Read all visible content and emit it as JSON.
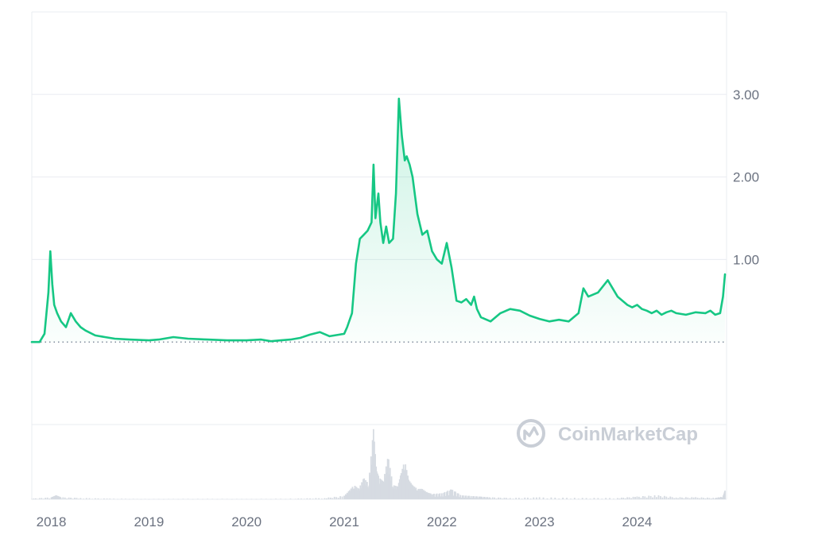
{
  "watermark": {
    "text": "CoinMarketCap",
    "icon": "coinmarketcap-logo-icon"
  },
  "colors": {
    "line": "#16c784",
    "fill_top": "#16c784",
    "volume": "#d6dbe2",
    "grid": "#e9ecf1",
    "baseline": "#58667e",
    "axis_text": "#6b7280",
    "watermark": "#c9ced6"
  },
  "chart_data": {
    "type": "area",
    "title": "",
    "xlabel": "",
    "ylabel": "",
    "ylim": [
      -1,
      4
    ],
    "xlim": [
      2017.8,
      2024.9
    ],
    "y_ticks": [
      1,
      2,
      3
    ],
    "y_tick_labels": [
      "1.00",
      "2.00",
      "3.00"
    ],
    "x_ticks": [
      2018,
      2019,
      2020,
      2021,
      2022,
      2023,
      2024
    ],
    "x_tick_labels": [
      "2018",
      "2019",
      "2020",
      "2021",
      "2022",
      "2023",
      "2024"
    ],
    "grid": true,
    "baseline_value": 0.0,
    "series": [
      {
        "x": [
          2017.8,
          2017.88,
          2017.93,
          2017.97,
          2017.99,
          2018.01,
          2018.03,
          2018.06,
          2018.1,
          2018.15,
          2018.2,
          2018.25,
          2018.3,
          2018.35,
          2018.45,
          2018.55,
          2018.65,
          2018.8,
          2019.0,
          2019.1,
          2019.25,
          2019.4,
          2019.6,
          2019.8,
          2020.0,
          2020.15,
          2020.25,
          2020.35,
          2020.45,
          2020.55,
          2020.65,
          2020.75,
          2020.85,
          2020.95,
          2021.0,
          2021.03,
          2021.08,
          2021.12,
          2021.16,
          2021.2,
          2021.24,
          2021.28,
          2021.3,
          2021.32,
          2021.35,
          2021.37,
          2021.4,
          2021.43,
          2021.46,
          2021.5,
          2021.53,
          2021.56,
          2021.59,
          2021.62,
          2021.64,
          2021.67,
          2021.7,
          2021.75,
          2021.8,
          2021.85,
          2021.9,
          2021.95,
          2022.0,
          2022.05,
          2022.1,
          2022.15,
          2022.2,
          2022.25,
          2022.3,
          2022.33,
          2022.36,
          2022.4,
          2022.5,
          2022.6,
          2022.7,
          2022.8,
          2022.9,
          2023.0,
          2023.1,
          2023.2,
          2023.3,
          2023.4,
          2023.45,
          2023.5,
          2023.6,
          2023.7,
          2023.8,
          2023.9,
          2023.95,
          2024.0,
          2024.05,
          2024.1,
          2024.15,
          2024.2,
          2024.25,
          2024.3,
          2024.35,
          2024.4,
          2024.5,
          2024.6,
          2024.7,
          2024.75,
          2024.8,
          2024.85,
          2024.88,
          2024.9
        ],
        "y": [
          0.0,
          0.0,
          0.1,
          0.6,
          1.1,
          0.7,
          0.45,
          0.35,
          0.25,
          0.18,
          0.35,
          0.25,
          0.18,
          0.14,
          0.08,
          0.06,
          0.04,
          0.03,
          0.02,
          0.03,
          0.06,
          0.04,
          0.03,
          0.02,
          0.02,
          0.03,
          0.01,
          0.02,
          0.03,
          0.05,
          0.09,
          0.12,
          0.07,
          0.09,
          0.1,
          0.18,
          0.35,
          0.95,
          1.25,
          1.3,
          1.35,
          1.45,
          2.15,
          1.5,
          1.8,
          1.45,
          1.2,
          1.4,
          1.2,
          1.25,
          1.8,
          2.95,
          2.5,
          2.2,
          2.25,
          2.15,
          2.0,
          1.55,
          1.3,
          1.35,
          1.1,
          1.0,
          0.95,
          1.2,
          0.9,
          0.5,
          0.48,
          0.52,
          0.45,
          0.55,
          0.4,
          0.3,
          0.25,
          0.35,
          0.4,
          0.38,
          0.32,
          0.28,
          0.25,
          0.27,
          0.25,
          0.35,
          0.65,
          0.55,
          0.6,
          0.75,
          0.55,
          0.45,
          0.42,
          0.45,
          0.4,
          0.38,
          0.35,
          0.38,
          0.33,
          0.36,
          0.38,
          0.35,
          0.33,
          0.36,
          0.35,
          0.38,
          0.33,
          0.35,
          0.55,
          0.82
        ]
      }
    ],
    "volume": {
      "ylim": [
        0,
        10
      ],
      "x": [
        2017.8,
        2018.0,
        2018.05,
        2018.1,
        2018.3,
        2018.6,
        2019.0,
        2019.5,
        2020.0,
        2020.5,
        2020.8,
        2021.0,
        2021.05,
        2021.1,
        2021.15,
        2021.2,
        2021.25,
        2021.3,
        2021.33,
        2021.36,
        2021.4,
        2021.45,
        2021.5,
        2021.55,
        2021.58,
        2021.62,
        2021.66,
        2021.7,
        2021.75,
        2021.8,
        2021.85,
        2021.9,
        2022.0,
        2022.1,
        2022.2,
        2022.3,
        2022.4,
        2022.5,
        2022.7,
        2023.0,
        2023.4,
        2023.8,
        2024.0,
        2024.2,
        2024.4,
        2024.6,
        2024.8,
        2024.88,
        2024.9
      ],
      "y": [
        0.1,
        0.3,
        0.6,
        0.3,
        0.2,
        0.1,
        0.05,
        0.08,
        0.05,
        0.1,
        0.2,
        0.5,
        1.2,
        2.0,
        1.5,
        3.0,
        2.2,
        9.8,
        4.0,
        3.0,
        2.5,
        6.0,
        2.0,
        1.8,
        3.5,
        5.5,
        2.8,
        2.0,
        1.5,
        1.5,
        1.0,
        0.8,
        0.9,
        1.5,
        0.6,
        0.5,
        0.4,
        0.3,
        0.2,
        0.3,
        0.2,
        0.2,
        0.4,
        0.6,
        0.3,
        0.3,
        0.2,
        0.4,
        1.2
      ]
    }
  }
}
